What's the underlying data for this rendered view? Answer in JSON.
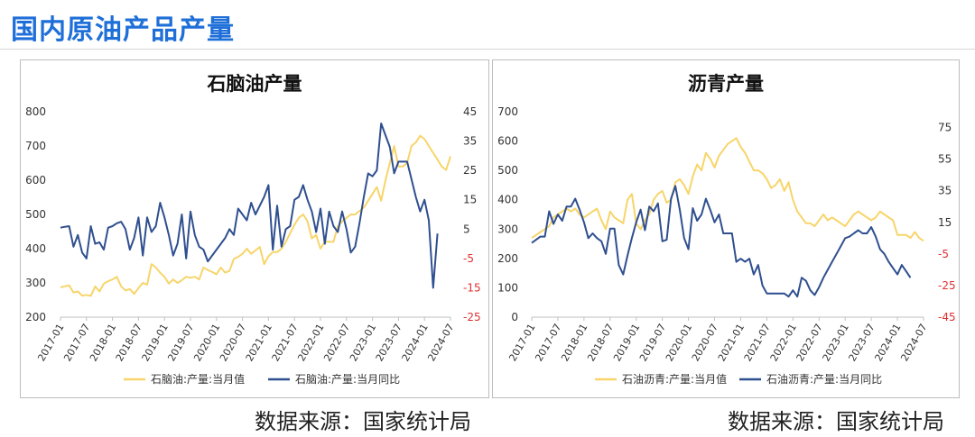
{
  "page": {
    "title": "国内原油产品产量"
  },
  "colors": {
    "yellow": "#f7d56a",
    "blue": "#2f4f8f",
    "axis_text": "#333333",
    "neg_text": "#e03030"
  },
  "chart_data": [
    {
      "type": "line",
      "title": "石脑油产量",
      "x_ticks": [
        "2017-01",
        "2017-07",
        "2018-01",
        "2018-07",
        "2019-01",
        "2019-07",
        "2020-01",
        "2020-07",
        "2021-01",
        "2021-07",
        "2022-01",
        "2022-07",
        "2023-01",
        "2023-07",
        "2024-01",
        "2024-07"
      ],
      "y_left": {
        "ylim": [
          200,
          800
        ],
        "ticks": [
          "200",
          "300",
          "400",
          "500",
          "600",
          "700",
          "800"
        ]
      },
      "y_right": {
        "ylim": [
          -25,
          45
        ],
        "ticks": [
          "-25",
          "-15",
          "-5",
          "5",
          "15",
          "25",
          "35",
          "45"
        ]
      },
      "series": [
        {
          "name": "石脑油:产量:当月值",
          "axis": "left",
          "color": "#f7d56a",
          "values": [
            287,
            290,
            293,
            272,
            275,
            263,
            265,
            262,
            290,
            275,
            298,
            305,
            310,
            318,
            290,
            278,
            282,
            268,
            285,
            300,
            295,
            355,
            345,
            330,
            318,
            298,
            310,
            300,
            308,
            318,
            315,
            318,
            310,
            345,
            338,
            332,
            325,
            345,
            330,
            335,
            370,
            376,
            385,
            400,
            385,
            395,
            405,
            355,
            378,
            390,
            390,
            400,
            420,
            445,
            470,
            490,
            500,
            480,
            430,
            440,
            400,
            420,
            420,
            420,
            465,
            480,
            490,
            500,
            500,
            510,
            520,
            540,
            560,
            580,
            540,
            600,
            650,
            700,
            640,
            640,
            650,
            700,
            710,
            730,
            720,
            700,
            680,
            660,
            640,
            630,
            670
          ]
        },
        {
          "name": "石脑油:产量:当月同比",
          "axis": "right",
          "color": "#2f4f8f",
          "values": [
            5.5,
            5.8,
            6.0,
            -1.0,
            3.0,
            -3.0,
            -5.0,
            6.0,
            0.0,
            0.5,
            -2.0,
            5.5,
            6.0,
            7.0,
            7.5,
            5.0,
            -2.0,
            2.0,
            9.0,
            -4.0,
            9.0,
            4.0,
            6.0,
            14.0,
            9.0,
            3.0,
            -4.0,
            0.0,
            10.0,
            -5.0,
            11.0,
            3.0,
            -1.0,
            -2.0,
            -6.0,
            -4.0,
            -2.0,
            0.0,
            2.0,
            5.0,
            3.0,
            12.0,
            10.0,
            8.0,
            14.0,
            10.0,
            13.0,
            16.0,
            20.0,
            -2.0,
            13.0,
            -1.0,
            5.0,
            6.0,
            15.0,
            16.0,
            20.0,
            15.0,
            11.0,
            4.0,
            12.0,
            0.0,
            11.0,
            6.0,
            4.0,
            11.0,
            5.0,
            -3.0,
            -1.0,
            7.0,
            16.0,
            24.0,
            23.0,
            25.0,
            41.0,
            37.0,
            33.0,
            24.0,
            28.0,
            28.0,
            28.0,
            22.0,
            16.0,
            11.0,
            15.0,
            8.0,
            -15.0,
            3.5
          ]
        }
      ],
      "legend": [
        "石脑油:产量:当月值",
        "石脑油:产量:当月同比"
      ]
    },
    {
      "type": "line",
      "title": "沥青产量",
      "x_ticks": [
        "2017-01",
        "2017-07",
        "2018-01",
        "2018-07",
        "2019-01",
        "2019-07",
        "2020-01",
        "2020-07",
        "2021-01",
        "2021-07",
        "2022-01",
        "2022-07",
        "2023-01",
        "2023-07",
        "2024-01",
        "2024-07"
      ],
      "y_left": {
        "ylim": [
          0,
          700
        ],
        "ticks": [
          "0",
          "100",
          "200",
          "300",
          "400",
          "500",
          "600",
          "700"
        ]
      },
      "y_right": {
        "ylim": [
          -45,
          85
        ],
        "ticks": [
          "-45",
          "-25",
          "-5",
          "15",
          "35",
          "55",
          "75"
        ]
      },
      "series": [
        {
          "name": "石油沥青:产量:当月值",
          "axis": "left",
          "color": "#f7d56a",
          "values": [
            270,
            280,
            290,
            300,
            310,
            340,
            350,
            360,
            370,
            360,
            370,
            350,
            340,
            350,
            360,
            370,
            330,
            300,
            360,
            340,
            330,
            320,
            400,
            420,
            320,
            300,
            330,
            350,
            400,
            420,
            430,
            390,
            400,
            460,
            470,
            450,
            420,
            480,
            520,
            500,
            560,
            540,
            510,
            550,
            570,
            590,
            600,
            610,
            580,
            560,
            530,
            500,
            500,
            490,
            470,
            440,
            450,
            470,
            430,
            460,
            400,
            360,
            340,
            320,
            320,
            310,
            330,
            350,
            330,
            340,
            330,
            320,
            310,
            330,
            350,
            360,
            350,
            340,
            330,
            340,
            360,
            350,
            340,
            330,
            280,
            280,
            280,
            270,
            290,
            270,
            260
          ]
        },
        {
          "name": "石油沥青:产量:当月同比",
          "axis": "right",
          "color": "#2f4f8f",
          "values": [
            2,
            4,
            6,
            6,
            22,
            14,
            20,
            16,
            25,
            25,
            30,
            23,
            15,
            5,
            8,
            5,
            3,
            -5,
            11,
            11,
            -12,
            -18,
            -6,
            5,
            15,
            23,
            10,
            25,
            22,
            27,
            3,
            4,
            30,
            38,
            23,
            5,
            -2,
            24,
            16,
            20,
            30,
            23,
            15,
            20,
            8,
            8,
            8,
            -10,
            -8,
            -10,
            -8,
            -18,
            -12,
            -25,
            -30,
            -30,
            -30,
            -30,
            -30,
            -32,
            -28,
            -32,
            -20,
            -22,
            -28,
            -31,
            -26,
            -20,
            -15,
            -10,
            -5,
            0,
            5,
            6,
            8,
            10,
            8,
            8,
            12,
            6,
            -2,
            -5,
            -10,
            -14,
            -18,
            -12,
            -16,
            -20
          ]
        }
      ],
      "legend": [
        "石油沥青:产量:当月值",
        "石油沥青:产量:当月同比"
      ]
    }
  ],
  "footer": {
    "source_left": "数据来源：国家统计局",
    "source_right": "数据来源：国家统计局"
  }
}
